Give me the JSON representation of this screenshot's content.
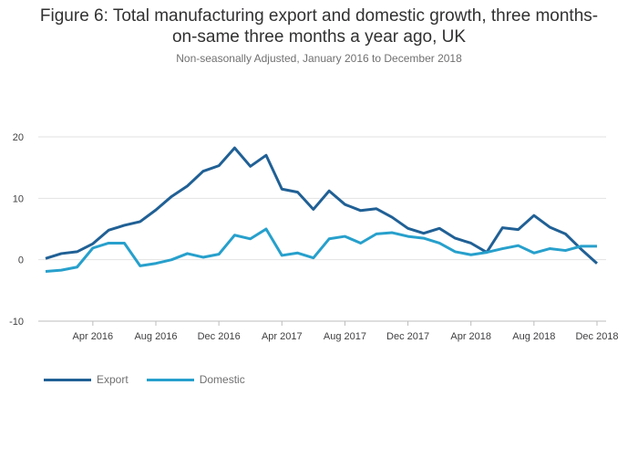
{
  "chart_data": {
    "type": "line",
    "title": "Figure 6: Total manufacturing export and domestic growth, three months-on-same three months a year ago, UK",
    "title_lines": [
      "Figure 6: Total manufacturing export and domestic growth, three months-",
      "on-same three months a year ago, UK"
    ],
    "subtitle": "Non-seasonally Adjusted, January 2016 to December 2018",
    "xlabel": "",
    "ylabel": "",
    "ylim": [
      -10,
      20
    ],
    "yticks": [
      20,
      10,
      0,
      -10
    ],
    "xtick_labels": [
      {
        "index": 3,
        "label": "Apr 2016"
      },
      {
        "index": 7,
        "label": "Aug 2016"
      },
      {
        "index": 11,
        "label": "Dec 2016"
      },
      {
        "index": 15,
        "label": "Apr 2017"
      },
      {
        "index": 19,
        "label": "Aug 2017"
      },
      {
        "index": 23,
        "label": "Dec 2017"
      },
      {
        "index": 27,
        "label": "Apr 2018"
      },
      {
        "index": 31,
        "label": "Aug 2018"
      },
      {
        "index": 35,
        "label": "Dec 2018"
      }
    ],
    "x": [
      "Jan 2016",
      "Feb 2016",
      "Mar 2016",
      "Apr 2016",
      "May 2016",
      "Jun 2016",
      "Jul 2016",
      "Aug 2016",
      "Sep 2016",
      "Oct 2016",
      "Nov 2016",
      "Dec 2016",
      "Jan 2017",
      "Feb 2017",
      "Mar 2017",
      "Apr 2017",
      "May 2017",
      "Jun 2017",
      "Jul 2017",
      "Aug 2017",
      "Sep 2017",
      "Oct 2017",
      "Nov 2017",
      "Dec 2017",
      "Jan 2018",
      "Feb 2018",
      "Mar 2018",
      "Apr 2018",
      "May 2018",
      "Jun 2018",
      "Jul 2018",
      "Aug 2018",
      "Sep 2018",
      "Oct 2018",
      "Nov 2018",
      "Dec 2018"
    ],
    "series": [
      {
        "name": "Export",
        "color": "#206095",
        "values": [
          0.2,
          1.0,
          1.3,
          2.6,
          4.8,
          5.6,
          6.2,
          8.1,
          10.3,
          12.0,
          14.4,
          15.3,
          18.2,
          15.2,
          17.0,
          11.5,
          11.0,
          8.2,
          11.2,
          9.0,
          8.0,
          8.3,
          6.9,
          5.1,
          4.3,
          5.1,
          3.5,
          2.7,
          1.2,
          5.2,
          4.9,
          7.2,
          5.3,
          4.2,
          1.7,
          -0.6
        ]
      },
      {
        "name": "Domestic",
        "color": "#27a0cc",
        "values": [
          -1.9,
          -1.7,
          -1.2,
          1.9,
          2.7,
          2.7,
          -1.0,
          -0.6,
          0.0,
          1.0,
          0.4,
          0.9,
          4.0,
          3.4,
          5.0,
          0.7,
          1.1,
          0.3,
          3.4,
          3.8,
          2.7,
          4.2,
          4.4,
          3.8,
          3.5,
          2.7,
          1.3,
          0.8,
          1.2,
          1.8,
          2.3,
          1.1,
          1.8,
          1.5,
          2.2,
          2.2
        ]
      }
    ],
    "grid": true,
    "legend_position": "bottom-left"
  }
}
